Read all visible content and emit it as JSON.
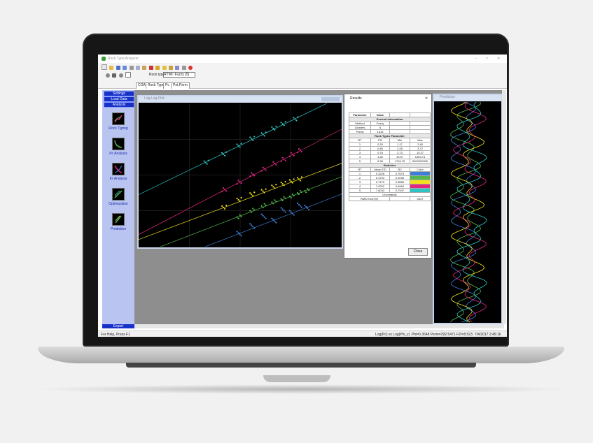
{
  "app": {
    "title": "Rock Type Analyzer",
    "rock_type_label": "Rock type",
    "rock_type_value": "RTWI: Fuzzy (5)",
    "tabs": [
      "COAL",
      "Rock Type",
      "Pc",
      "Pot.Perm"
    ],
    "window_controls": [
      "–",
      "□",
      "✕"
    ]
  },
  "sidebar": {
    "headers": [
      "Settings",
      "Load Data",
      "Analysis"
    ],
    "items": [
      "Rock Typing",
      "Pc Analysis",
      "Kr Analysis",
      "Optimization",
      "Prediction"
    ],
    "footer": "Expert"
  },
  "plot_window": {
    "title": "Log-Log Plot"
  },
  "prediction_window": {
    "title": "Prediction"
  },
  "results": {
    "title": "Results",
    "col_headers": [
      "Parameter",
      "Value"
    ],
    "general_title": "General Information",
    "general": [
      [
        "Method",
        "Fuzzy"
      ],
      [
        "Clusters",
        "5"
      ],
      [
        "Points",
        "1816"
      ]
    ],
    "rt_title": "Rock Types Parameter",
    "rt_headers": [
      "RT",
      "FZI",
      "Min",
      "Max"
    ],
    "rt_rows": [
      [
        "1",
        "0.33",
        "1.17",
        "2.45"
      ],
      [
        "2",
        "0.46",
        "2.45",
        "3.72"
      ],
      [
        "3",
        "0.78",
        "3.73",
        "10.37"
      ],
      [
        "4",
        "1.56",
        "10.57",
        "1353.74"
      ],
      [
        "5",
        "6.38",
        "1734.75",
        "0000000000"
      ]
    ],
    "stats_title": "Statistics",
    "stats_headers": [
      "RT",
      "Mean FZI",
      "R2",
      "Color"
    ],
    "stats_rows": [
      [
        "1",
        "0.3226",
        "0.7673"
      ],
      [
        "2",
        "0.4703",
        "0.9296"
      ],
      [
        "3",
        "0.7179",
        "0.8580"
      ],
      [
        "4",
        "1.9222",
        "0.8464"
      ],
      [
        "5",
        "7.6042",
        "0.7947"
      ]
    ],
    "stats_colors": [
      "#3d7fd6",
      "#55b84b",
      "#f2e21c",
      "#e1277f",
      "#2fc4c4"
    ],
    "uncertainty_label": "Uncertainty",
    "rms_label": "RMS Error(%)",
    "rms_value": "4637",
    "close_label": "Close"
  },
  "status": {
    "help": "For Help, Press F1",
    "axes": "Log(Pc) vs Log(Phi_z)",
    "coords": "Phi=0.3648  Perm=292.5471  FZI=8.523",
    "timestamp": "7/4/2017 2:45:16"
  },
  "chart_data": {
    "type": "scatter",
    "xscale": "log",
    "yscale": "log",
    "grid": true,
    "series": [
      {
        "color": "#3d7fd6",
        "points": [
          [
            0.14,
            0.02
          ],
          [
            0.16,
            0.03
          ],
          [
            0.18,
            0.05
          ],
          [
            0.2,
            0.04
          ],
          [
            0.22,
            0.07
          ],
          [
            0.24,
            0.06
          ],
          [
            0.26,
            0.09
          ],
          [
            0.28,
            0.08
          ]
        ]
      },
      {
        "color": "#55b84b",
        "points": [
          [
            0.14,
            0.05
          ],
          [
            0.16,
            0.07
          ],
          [
            0.18,
            0.09
          ],
          [
            0.2,
            0.11
          ],
          [
            0.22,
            0.13
          ],
          [
            0.24,
            0.15
          ],
          [
            0.26,
            0.18
          ],
          [
            0.28,
            0.2
          ]
        ]
      },
      {
        "color": "#f2e21c",
        "points": [
          [
            0.12,
            0.08
          ],
          [
            0.14,
            0.12
          ],
          [
            0.16,
            0.16
          ],
          [
            0.18,
            0.19
          ],
          [
            0.2,
            0.24
          ],
          [
            0.22,
            0.28
          ],
          [
            0.24,
            0.32
          ],
          [
            0.26,
            0.36
          ]
        ]
      },
      {
        "color": "#e1277f",
        "points": [
          [
            0.12,
            0.2
          ],
          [
            0.14,
            0.3
          ],
          [
            0.16,
            0.45
          ],
          [
            0.18,
            0.6
          ],
          [
            0.2,
            0.8
          ],
          [
            0.22,
            1.0
          ],
          [
            0.24,
            1.3
          ],
          [
            0.26,
            1.6
          ]
        ]
      },
      {
        "color": "#2fc4c4",
        "points": [
          [
            0.1,
            0.9
          ],
          [
            0.12,
            1.4
          ],
          [
            0.14,
            2.2
          ],
          [
            0.16,
            3.2
          ],
          [
            0.18,
            4.0
          ],
          [
            0.2,
            5.5
          ],
          [
            0.22,
            7.0
          ],
          [
            0.25,
            9.0
          ]
        ]
      }
    ]
  }
}
